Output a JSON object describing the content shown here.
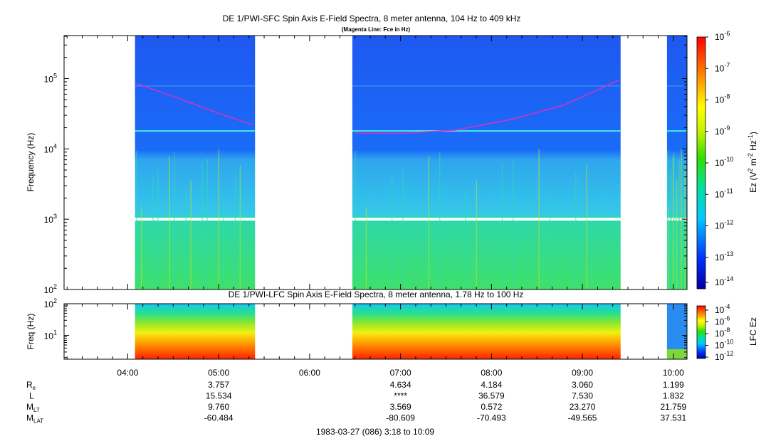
{
  "chart_data": [
    {
      "type": "heatmap",
      "title": "DE 1/PWI-SFC  Spin Axis E-Field Spectra, 8 meter antenna, 104 Hz to 409 kHz",
      "subtitle": "(Magenta Line: Fce in Hz)",
      "ylabel": "Frequency (Hz)",
      "yscale": "log",
      "ylim": [
        100,
        409000
      ],
      "yticks": [
        100,
        1000,
        10000,
        100000
      ],
      "ytick_base": "10",
      "ytick_exps": [
        "2",
        "3",
        "4",
        "5"
      ],
      "colorbar": {
        "label_parts": [
          "Ez (V",
          "2",
          " m",
          "-2",
          " Hz",
          "-1",
          ")"
        ],
        "scale": "log",
        "range": [
          1e-14,
          1e-06
        ],
        "tick_base": "10",
        "tick_exps": [
          "-14",
          "-13",
          "-12",
          "-11",
          "-10",
          "-9",
          "-8",
          "-7",
          "-6"
        ]
      },
      "data_coverage_hours": [
        [
          4.08,
          5.4
        ],
        [
          6.47,
          9.42
        ],
        [
          9.93,
          10.15
        ]
      ],
      "fce_line_samples": [
        {
          "t": 4.1,
          "fce_hz": 85000
        },
        {
          "t": 4.6,
          "fce_hz": 50000
        },
        {
          "t": 5.0,
          "fce_hz": 32000
        },
        {
          "t": 5.38,
          "fce_hz": 22000
        },
        {
          "t": 6.5,
          "fce_hz": 16800
        },
        {
          "t": 7.0,
          "fce_hz": 16600
        },
        {
          "t": 7.6,
          "fce_hz": 18500
        },
        {
          "t": 8.2,
          "fce_hz": 26000
        },
        {
          "t": 8.8,
          "fce_hz": 42000
        },
        {
          "t": 9.4,
          "fce_hz": 95000
        }
      ]
    },
    {
      "type": "heatmap",
      "title": "DE 1/PWI-LFC  Spin Axis E-Field Spectra, 8 meter antenna, 1.78 Hz to 100 Hz",
      "ylabel": "Freq (Hz)",
      "yscale": "log",
      "ylim": [
        1.78,
        100
      ],
      "yticks": [
        10,
        100
      ],
      "ytick_base": "10",
      "ytick_exps": [
        "1",
        "2"
      ],
      "colorbar": {
        "label": "LFC Ez",
        "scale": "log",
        "range": [
          1e-12,
          0.0001
        ],
        "tick_base": "10",
        "tick_exps": [
          "-4",
          "-6",
          "-8",
          "-10",
          "-12"
        ]
      },
      "data_coverage_hours": [
        [
          4.08,
          5.4
        ],
        [
          6.47,
          9.42
        ],
        [
          9.93,
          10.15
        ]
      ]
    }
  ],
  "time_axis": {
    "range_hours": [
      3.3,
      10.15
    ],
    "ticks": [
      {
        "t": 4,
        "label": "04:00"
      },
      {
        "t": 5,
        "label": "05:00"
      },
      {
        "t": 6,
        "label": "06:00"
      },
      {
        "t": 7,
        "label": "07:00"
      },
      {
        "t": 8,
        "label": "08:00"
      },
      {
        "t": 9,
        "label": "09:00"
      },
      {
        "t": 10,
        "label": "10:00"
      }
    ]
  },
  "ephemeris": {
    "rows": [
      {
        "label": "R",
        "sub": "e",
        "values": [
          {
            "t": 5,
            "v": "3.757"
          },
          {
            "t": 7,
            "v": "4.634"
          },
          {
            "t": 8,
            "v": "4.184"
          },
          {
            "t": 9,
            "v": "3.060"
          },
          {
            "t": 10,
            "v": "1.199"
          }
        ]
      },
      {
        "label": "L",
        "sub": "",
        "values": [
          {
            "t": 5,
            "v": "15.534"
          },
          {
            "t": 7,
            "v": "****"
          },
          {
            "t": 8,
            "v": "36.579"
          },
          {
            "t": 9,
            "v": "7.530"
          },
          {
            "t": 10,
            "v": "1.832"
          }
        ]
      },
      {
        "label": "M",
        "sub": "LT",
        "values": [
          {
            "t": 5,
            "v": "9.760"
          },
          {
            "t": 7,
            "v": "3.569"
          },
          {
            "t": 8,
            "v": "0.572"
          },
          {
            "t": 9,
            "v": "23.270"
          },
          {
            "t": 10,
            "v": "21.759"
          }
        ]
      },
      {
        "label": "M",
        "sub": "LAT",
        "values": [
          {
            "t": 5,
            "v": "-60.484"
          },
          {
            "t": 7,
            "v": "-80.609"
          },
          {
            "t": 8,
            "v": "-70.493"
          },
          {
            "t": 9,
            "v": "-49.565"
          },
          {
            "t": 10,
            "v": "37.531"
          }
        ]
      }
    ]
  },
  "footer": "1983-03-27 (086) 3:18 to 10:09",
  "colors": {
    "fce_line": "#cc33cc",
    "cyan_line": "#44e8e0"
  }
}
